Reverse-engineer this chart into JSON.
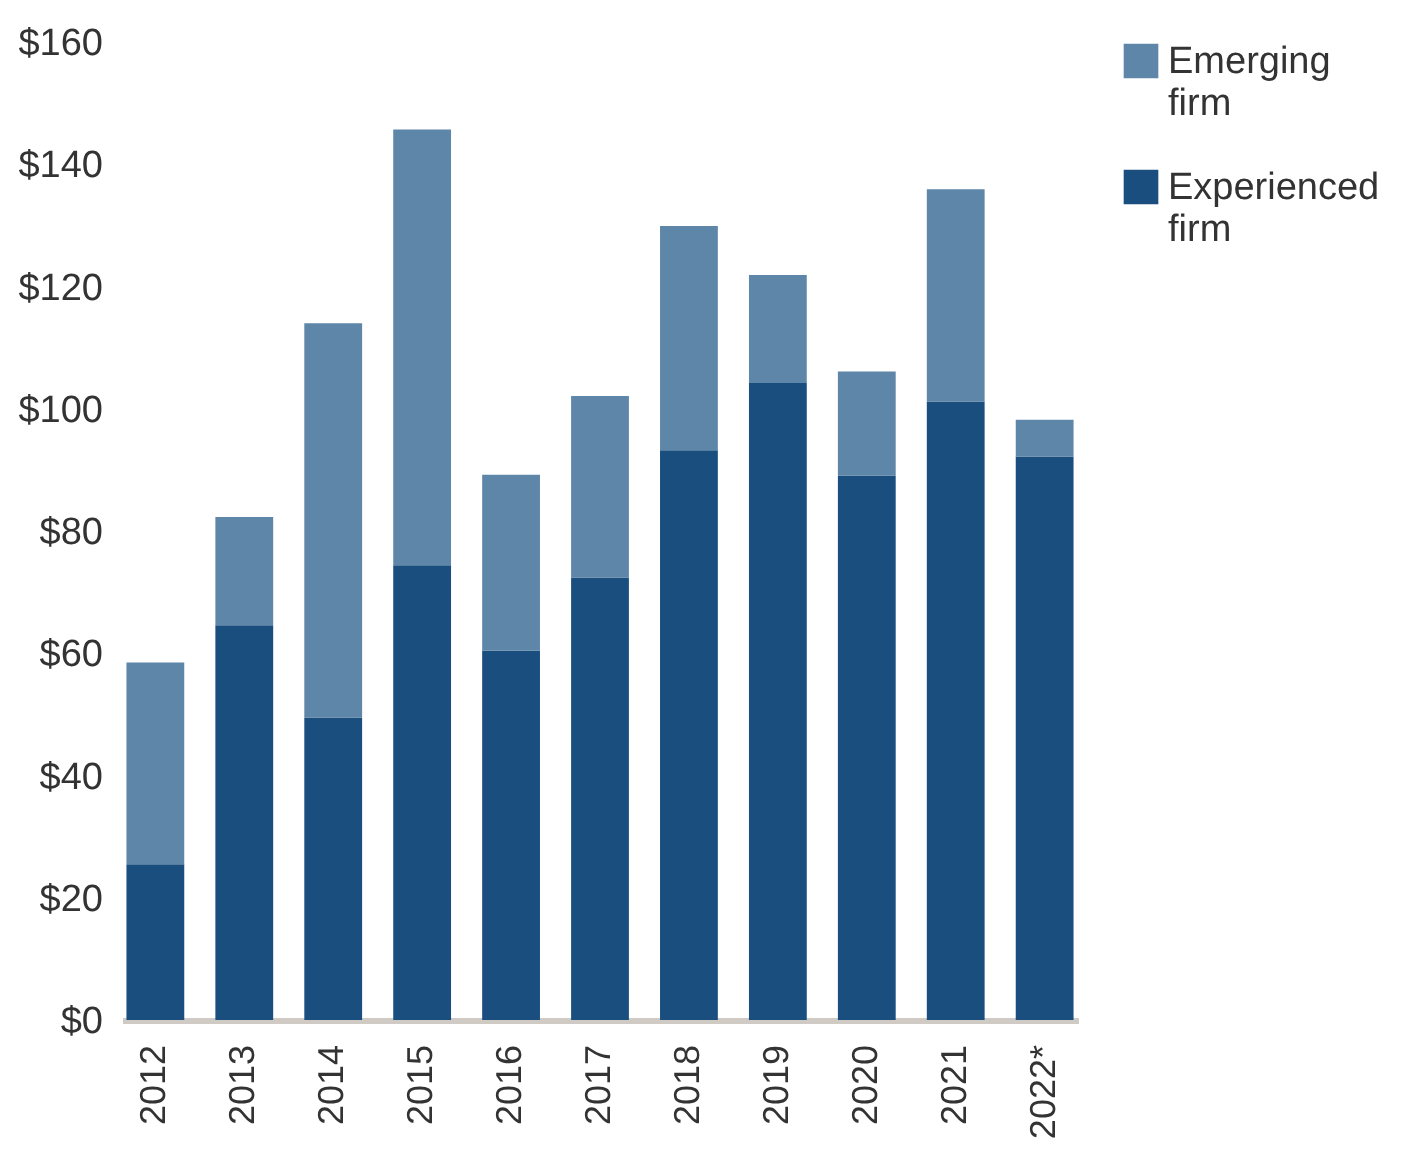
{
  "chart_data": {
    "type": "bar",
    "stacked": true,
    "categories": [
      "2012",
      "2013",
      "2014",
      "2015",
      "2016",
      "2017",
      "2018",
      "2019",
      "2020",
      "2021",
      "2022*"
    ],
    "series": [
      {
        "name": "Experienced firm",
        "color": "#1a4e7e",
        "values": [
          25.5,
          64.6,
          49.5,
          74.4,
          60.4,
          72.4,
          93.2,
          104.2,
          89.1,
          101.2,
          92.2
        ]
      },
      {
        "name": "Emerging firm",
        "color": "#5e86a8",
        "values": [
          33,
          17.7,
          64.5,
          71.3,
          28.8,
          29.7,
          36.7,
          17.7,
          17,
          34.7,
          6
        ]
      }
    ],
    "ylim": [
      0,
      160
    ],
    "yticks": [
      {
        "value": 0,
        "label": "$0"
      },
      {
        "value": 20,
        "label": "$20"
      },
      {
        "value": 40,
        "label": "$40"
      },
      {
        "value": 60,
        "label": "$60"
      },
      {
        "value": 80,
        "label": "$80"
      },
      {
        "value": 100,
        "label": "$100"
      },
      {
        "value": 120,
        "label": "$120"
      },
      {
        "value": 140,
        "label": "$140"
      },
      {
        "value": 160,
        "label": "$160"
      }
    ],
    "grid": false,
    "legend": "top right"
  }
}
